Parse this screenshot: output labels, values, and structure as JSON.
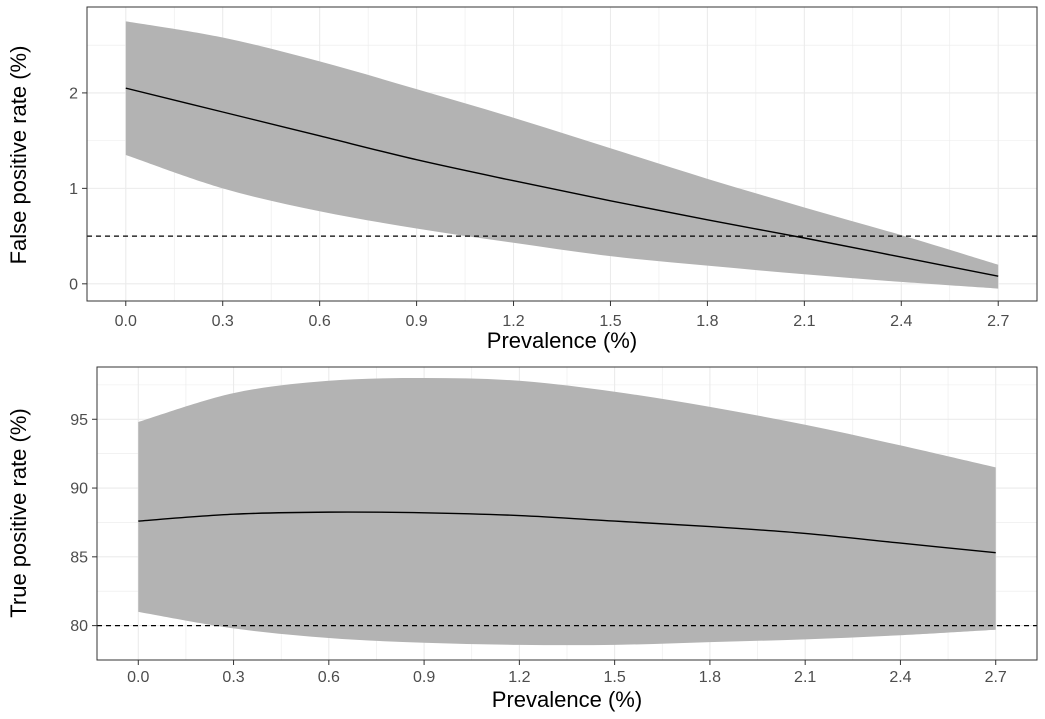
{
  "chart_data": [
    {
      "type": "line",
      "panel": "top",
      "xlabel": "Prevalence (%)",
      "ylabel": "False positive rate (%)",
      "xlim": [
        -0.12,
        2.82
      ],
      "ylim": [
        -0.18,
        2.9
      ],
      "xticks": [
        0.0,
        0.3,
        0.6,
        0.9,
        1.2,
        1.5,
        1.8,
        2.1,
        2.4,
        2.7
      ],
      "xtick_labels": [
        "0.0",
        "0.3",
        "0.6",
        "0.9",
        "1.2",
        "1.5",
        "1.8",
        "2.1",
        "2.4",
        "2.7"
      ],
      "yticks": [
        0,
        1,
        2
      ],
      "ytick_labels": [
        "0",
        "1",
        "2"
      ],
      "x": [
        0.0,
        0.3,
        0.6,
        0.9,
        1.2,
        1.5,
        1.8,
        2.1,
        2.4,
        2.7
      ],
      "series": [
        {
          "name": "estimate",
          "values": [
            2.05,
            1.8,
            1.55,
            1.3,
            1.08,
            0.87,
            0.67,
            0.48,
            0.28,
            0.08
          ]
        },
        {
          "name": "lower",
          "values": [
            1.35,
            1.0,
            0.76,
            0.58,
            0.43,
            0.29,
            0.19,
            0.1,
            0.02,
            -0.05
          ]
        },
        {
          "name": "upper",
          "values": [
            2.75,
            2.58,
            2.33,
            2.04,
            1.74,
            1.42,
            1.1,
            0.8,
            0.51,
            0.2
          ]
        }
      ],
      "reference_line": {
        "y": 0.5,
        "style": "dashed"
      },
      "colors": {
        "band": "#b3b3b3",
        "line": "#000000",
        "grid": "#ebebeb",
        "border": "#333333"
      },
      "grid": true
    },
    {
      "type": "line",
      "panel": "bottom",
      "xlabel": "Prevalence (%)",
      "ylabel": "True positive rate (%)",
      "xlim": [
        -0.13,
        2.83
      ],
      "ylim": [
        77.5,
        98.8
      ],
      "xticks": [
        0.0,
        0.3,
        0.6,
        0.9,
        1.2,
        1.5,
        1.8,
        2.1,
        2.4,
        2.7
      ],
      "xtick_labels": [
        "0.0",
        "0.3",
        "0.6",
        "0.9",
        "1.2",
        "1.5",
        "1.8",
        "2.1",
        "2.4",
        "2.7"
      ],
      "yticks": [
        80,
        85,
        90,
        95
      ],
      "ytick_labels": [
        "80",
        "85",
        "90",
        "95"
      ],
      "x": [
        0.0,
        0.3,
        0.6,
        0.9,
        1.2,
        1.5,
        1.8,
        2.1,
        2.4,
        2.7
      ],
      "series": [
        {
          "name": "estimate",
          "values": [
            87.6,
            88.1,
            88.25,
            88.2,
            88.0,
            87.6,
            87.2,
            86.7,
            86.0,
            85.3
          ]
        },
        {
          "name": "lower",
          "values": [
            81.0,
            79.8,
            79.1,
            78.75,
            78.6,
            78.6,
            78.8,
            79.0,
            79.3,
            79.7
          ]
        },
        {
          "name": "upper",
          "values": [
            94.8,
            96.9,
            97.8,
            98.0,
            97.8,
            97.0,
            95.9,
            94.6,
            93.1,
            91.5
          ]
        }
      ],
      "reference_line": {
        "y": 80,
        "style": "dashed"
      },
      "colors": {
        "band": "#b3b3b3",
        "line": "#000000",
        "grid": "#ebebeb",
        "border": "#333333"
      },
      "grid": true
    }
  ]
}
